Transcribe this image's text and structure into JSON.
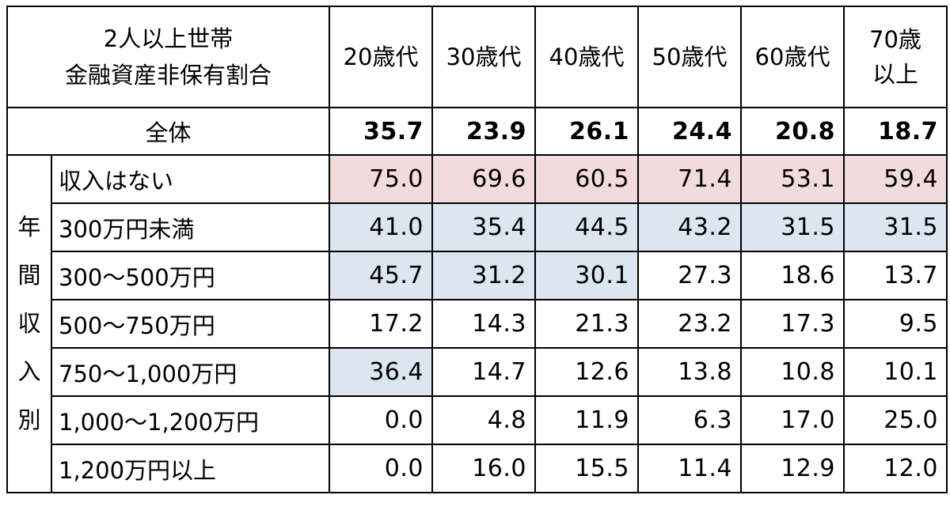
{
  "table": {
    "title_line1": "2人以上世帯",
    "title_line2": "金融資産非保有割合",
    "columns": [
      {
        "line1": "20歳代",
        "line2": ""
      },
      {
        "line1": "30歳代",
        "line2": ""
      },
      {
        "line1": "40歳代",
        "line2": ""
      },
      {
        "line1": "50歳代",
        "line2": ""
      },
      {
        "line1": "60歳代",
        "line2": ""
      },
      {
        "line1": "70歳",
        "line2": "以上"
      }
    ],
    "total_label": "全体",
    "total_values": [
      "35.7",
      "23.9",
      "26.1",
      "24.4",
      "20.8",
      "18.7"
    ],
    "side_label_chars": [
      "年",
      "間",
      "収",
      "入",
      "別"
    ],
    "rows": [
      {
        "label": "収入はない",
        "values": [
          "75.0",
          "69.6",
          "60.5",
          "71.4",
          "53.1",
          "59.4"
        ],
        "highlight": [
          "pink",
          "pink",
          "pink",
          "pink",
          "pink",
          "pink"
        ]
      },
      {
        "label": "300万円未満",
        "values": [
          "41.0",
          "35.4",
          "44.5",
          "43.2",
          "31.5",
          "31.5"
        ],
        "highlight": [
          "blue",
          "blue",
          "blue",
          "blue",
          "blue",
          "blue"
        ]
      },
      {
        "label": "300～500万円",
        "values": [
          "45.7",
          "31.2",
          "30.1",
          "27.3",
          "18.6",
          "13.7"
        ],
        "highlight": [
          "blue",
          "blue",
          "blue",
          "",
          "",
          ""
        ]
      },
      {
        "label": "500～750万円",
        "values": [
          "17.2",
          "14.3",
          "21.3",
          "23.2",
          "17.3",
          "9.5"
        ],
        "highlight": [
          "",
          "",
          "",
          "",
          "",
          ""
        ]
      },
      {
        "label": "750～1,000万円",
        "values": [
          "36.4",
          "14.7",
          "12.6",
          "13.8",
          "10.8",
          "10.1"
        ],
        "highlight": [
          "blue",
          "",
          "",
          "",
          "",
          ""
        ]
      },
      {
        "label": "1,000～1,200万円",
        "values": [
          "0.0",
          "4.8",
          "11.9",
          "6.3",
          "17.0",
          "25.0"
        ],
        "highlight": [
          "",
          "",
          "",
          "",
          "",
          ""
        ]
      },
      {
        "label": "1,200万円以上",
        "values": [
          "0.0",
          "16.0",
          "15.5",
          "11.4",
          "12.9",
          "12.0"
        ],
        "highlight": [
          "",
          "",
          "",
          "",
          "",
          ""
        ]
      }
    ]
  },
  "colors": {
    "pink_highlight": "#f2dcdb",
    "blue_highlight": "#dce6f1",
    "border": "#000000"
  },
  "chart_data": {
    "type": "table",
    "title": "2人以上世帯 金融資産非保有割合",
    "categories": [
      "20歳代",
      "30歳代",
      "40歳代",
      "50歳代",
      "60歳代",
      "70歳以上"
    ],
    "series": [
      {
        "name": "全体",
        "values": [
          35.7,
          23.9,
          26.1,
          24.4,
          20.8,
          18.7
        ]
      },
      {
        "name": "収入はない",
        "values": [
          75.0,
          69.6,
          60.5,
          71.4,
          53.1,
          59.4
        ]
      },
      {
        "name": "300万円未満",
        "values": [
          41.0,
          35.4,
          44.5,
          43.2,
          31.5,
          31.5
        ]
      },
      {
        "name": "300～500万円",
        "values": [
          45.7,
          31.2,
          30.1,
          27.3,
          18.6,
          13.7
        ]
      },
      {
        "name": "500～750万円",
        "values": [
          17.2,
          14.3,
          21.3,
          23.2,
          17.3,
          9.5
        ]
      },
      {
        "name": "750～1,000万円",
        "values": [
          36.4,
          14.7,
          12.6,
          13.8,
          10.8,
          10.1
        ]
      },
      {
        "name": "1,000～1,200万円",
        "values": [
          0.0,
          4.8,
          11.9,
          6.3,
          17.0,
          25.0
        ]
      },
      {
        "name": "1,200万円以上",
        "values": [
          0.0,
          16.0,
          15.5,
          11.4,
          12.9,
          12.0
        ]
      }
    ]
  }
}
